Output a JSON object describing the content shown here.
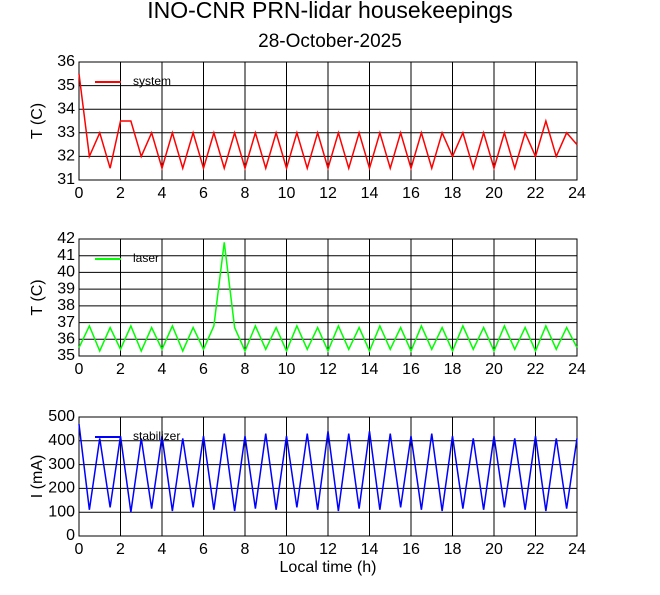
{
  "title": "INO-CNR PRN-lidar housekeepings",
  "subtitle": "28-October-2025",
  "chart_data": [
    {
      "type": "line",
      "ylabel": "T (C)",
      "xlim": [
        0,
        24
      ],
      "ylim": [
        31,
        36
      ],
      "xticks": [
        0,
        2,
        4,
        6,
        8,
        10,
        12,
        14,
        16,
        18,
        20,
        22,
        24
      ],
      "yticks": [
        31,
        32,
        33,
        34,
        35,
        36
      ],
      "grid": true,
      "legend": "upper-left",
      "x": [
        0,
        0.5,
        1,
        1.5,
        2,
        2.5,
        3,
        3.5,
        4,
        4.5,
        5,
        5.5,
        6,
        6.5,
        7,
        7.5,
        8,
        8.5,
        9,
        9.5,
        10,
        10.5,
        11,
        11.5,
        12,
        12.5,
        13,
        13.5,
        14,
        14.5,
        15,
        15.5,
        16,
        16.5,
        17,
        17.5,
        18,
        18.5,
        19,
        19.5,
        20,
        20.5,
        21,
        21.5,
        22,
        22.5,
        23,
        23.5,
        24
      ],
      "series": [
        {
          "name": "system",
          "color": "#ff0000",
          "values": [
            35.5,
            32,
            33,
            31.5,
            33.5,
            33.5,
            32,
            33,
            31.5,
            33,
            31.5,
            33,
            31.5,
            33,
            31.5,
            33,
            31.5,
            33,
            31.5,
            33,
            31.5,
            33,
            31.5,
            33,
            31.5,
            33,
            31.5,
            33,
            31.5,
            33,
            31.5,
            33,
            31.5,
            33,
            31.5,
            33,
            32,
            33,
            31.5,
            33,
            31.5,
            33,
            31.5,
            33,
            32,
            33.5,
            32,
            33,
            32.5
          ]
        }
      ]
    },
    {
      "type": "line",
      "ylabel": "T (C)",
      "xlim": [
        0,
        24
      ],
      "ylim": [
        35,
        42
      ],
      "xticks": [
        0,
        2,
        4,
        6,
        8,
        10,
        12,
        14,
        16,
        18,
        20,
        22,
        24
      ],
      "yticks": [
        35,
        36,
        37,
        38,
        39,
        40,
        41,
        42
      ],
      "grid": true,
      "legend": "upper-left",
      "x": [
        0,
        0.5,
        1,
        1.5,
        2,
        2.5,
        3,
        3.5,
        4,
        4.5,
        5,
        5.5,
        6,
        6.5,
        7,
        7.5,
        8,
        8.5,
        9,
        9.5,
        10,
        10.5,
        11,
        11.5,
        12,
        12.5,
        13,
        13.5,
        14,
        14.5,
        15,
        15.5,
        16,
        16.5,
        17,
        17.5,
        18,
        18.5,
        19,
        19.5,
        20,
        20.5,
        21,
        21.5,
        22,
        22.5,
        23,
        23.5,
        24
      ],
      "series": [
        {
          "name": "laser",
          "color": "#00ff00",
          "values": [
            35.5,
            36.8,
            35.3,
            36.7,
            35.4,
            36.8,
            35.3,
            36.7,
            35.4,
            36.8,
            35.3,
            36.7,
            35.4,
            36.8,
            41.8,
            36.7,
            35.3,
            36.8,
            35.4,
            36.7,
            35.3,
            36.8,
            35.4,
            36.7,
            35.3,
            36.8,
            35.4,
            36.7,
            35.3,
            36.8,
            35.4,
            36.7,
            35.3,
            36.8,
            35.4,
            36.7,
            35.3,
            36.8,
            35.4,
            36.7,
            35.3,
            36.8,
            35.4,
            36.7,
            35.3,
            36.8,
            35.4,
            36.7,
            35.5
          ]
        }
      ]
    },
    {
      "type": "line",
      "ylabel": "I (mA)",
      "xlabel": "Local time (h)",
      "xlim": [
        0,
        24
      ],
      "ylim": [
        0,
        500
      ],
      "xticks": [
        0,
        2,
        4,
        6,
        8,
        10,
        12,
        14,
        16,
        18,
        20,
        22,
        24
      ],
      "yticks": [
        0,
        100,
        200,
        300,
        400,
        500
      ],
      "grid": true,
      "legend": "upper-left",
      "x": [
        0,
        0.5,
        1,
        1.5,
        2,
        2.5,
        3,
        3.5,
        4,
        4.5,
        5,
        5.5,
        6,
        6.5,
        7,
        7.5,
        8,
        8.5,
        9,
        9.5,
        10,
        10.5,
        11,
        11.5,
        12,
        12.5,
        13,
        13.5,
        14,
        14.5,
        15,
        15.5,
        16,
        16.5,
        17,
        17.5,
        18,
        18.5,
        19,
        19.5,
        20,
        20.5,
        21,
        21.5,
        22,
        22.5,
        23,
        23.5,
        24
      ],
      "series": [
        {
          "name": "stabilizer",
          "color": "#0000ff",
          "values": [
            470,
            110,
            410,
            120,
            420,
            100,
            410,
            115,
            420,
            105,
            410,
            120,
            420,
            110,
            430,
            105,
            420,
            115,
            430,
            110,
            420,
            120,
            430,
            110,
            440,
            105,
            430,
            115,
            440,
            110,
            430,
            120,
            420,
            110,
            430,
            105,
            420,
            115,
            410,
            110,
            420,
            120,
            410,
            110,
            420,
            105,
            410,
            115,
            410
          ]
        }
      ]
    }
  ]
}
